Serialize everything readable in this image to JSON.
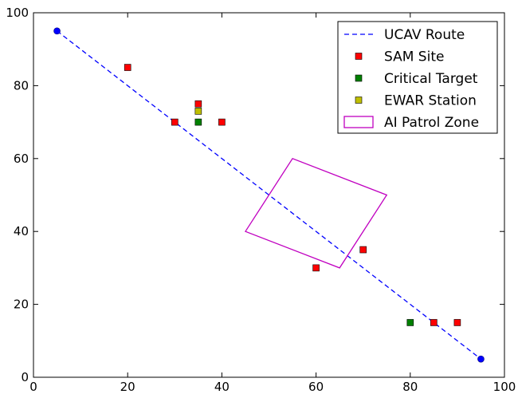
{
  "chart_data": {
    "type": "scatter",
    "xlim": [
      0,
      100
    ],
    "ylim": [
      0,
      100
    ],
    "xticks": [
      0,
      20,
      40,
      60,
      80,
      100
    ],
    "yticks": [
      0,
      20,
      40,
      60,
      80,
      100
    ],
    "grid": false,
    "legend_position": "top-right",
    "colors": {
      "route": "#0000ff",
      "sam": "#ff0000",
      "critical": "#008000",
      "ewar": "#bfbf00",
      "zone": "#c000c0"
    },
    "series": [
      {
        "name": "UCAV Route",
        "kind": "dashed-line",
        "points": [
          [
            5,
            95
          ],
          [
            95,
            5
          ]
        ]
      },
      {
        "name": "SAM Site",
        "kind": "square-marker",
        "points": [
          [
            20,
            85
          ],
          [
            30,
            70
          ],
          [
            35,
            75
          ],
          [
            40,
            70
          ],
          [
            60,
            30
          ],
          [
            70,
            35
          ],
          [
            85,
            15
          ],
          [
            90,
            15
          ]
        ]
      },
      {
        "name": "Critical Target",
        "kind": "square-marker",
        "points": [
          [
            35,
            70
          ],
          [
            80,
            15
          ]
        ]
      },
      {
        "name": "EWAR Station",
        "kind": "square-marker",
        "points": [
          [
            35,
            73
          ]
        ]
      },
      {
        "name": "AI Patrol Zone",
        "kind": "polygon",
        "points": [
          [
            45,
            40
          ],
          [
            55,
            60
          ],
          [
            75,
            50
          ],
          [
            65,
            30
          ]
        ]
      }
    ],
    "route_endpoints": [
      [
        5,
        95
      ],
      [
        95,
        5
      ]
    ]
  }
}
